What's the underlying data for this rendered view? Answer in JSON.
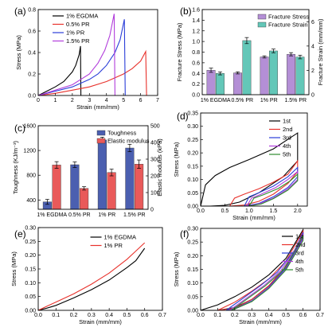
{
  "chart_data": [
    {
      "panel": "(a)",
      "type": "line",
      "xlabel": "Strain (mm/mm)",
      "ylabel": "Stress (MPa)",
      "xlim": [
        0,
        7
      ],
      "ylim": [
        0,
        0.8
      ],
      "xticks": [
        "0",
        "1",
        "2",
        "3",
        "4",
        "5",
        "6",
        "7"
      ],
      "yticks": [
        "0.0",
        "0.2",
        "0.4",
        "0.6",
        "0.8"
      ],
      "legend_position": "top-left",
      "series": [
        {
          "name": "1% EGDMA",
          "color": "#000000",
          "x": [
            0,
            0.5,
            1,
            1.5,
            2,
            2.2,
            2.4,
            2.48,
            2.5
          ],
          "y": [
            0,
            0.04,
            0.08,
            0.13,
            0.22,
            0.28,
            0.38,
            0.46,
            0.0
          ]
        },
        {
          "name": "0.5% PR",
          "color": "#e8312b",
          "x": [
            0,
            1,
            2,
            3,
            4,
            5,
            5.5,
            6,
            6.3,
            6.35
          ],
          "y": [
            0,
            0.02,
            0.05,
            0.08,
            0.13,
            0.2,
            0.25,
            0.32,
            0.41,
            0.0
          ]
        },
        {
          "name": "1% PR",
          "color": "#2a3dd8",
          "x": [
            0,
            1,
            2,
            3,
            3.5,
            4,
            4.5,
            4.8,
            5.05,
            5.1
          ],
          "y": [
            0,
            0.04,
            0.08,
            0.15,
            0.2,
            0.28,
            0.4,
            0.52,
            0.71,
            0.0
          ]
        },
        {
          "name": "1.5% PR",
          "color": "#b13ddb",
          "x": [
            0,
            1,
            2,
            3,
            3.5,
            3.9,
            4.2,
            4.45,
            4.5
          ],
          "y": [
            0,
            0.05,
            0.1,
            0.2,
            0.3,
            0.42,
            0.56,
            0.76,
            0.0
          ]
        }
      ]
    },
    {
      "panel": "(b)",
      "type": "bar",
      "categories": [
        "1% EGDMA",
        "0.5% PR",
        "1% PR",
        "1.5% PR"
      ],
      "ylabel": "Fracture Stress (MPa)",
      "ylim": [
        0,
        1.6
      ],
      "yticks": [
        "0.0",
        "0.2",
        "0.4",
        "0.6",
        "0.8",
        "1.0",
        "1.2",
        "1.4",
        "1.6"
      ],
      "y2label": "Fracture Strain (mm/mm)",
      "y2lim": [
        0,
        7
      ],
      "y2ticks": [
        "0",
        "2",
        "4",
        "6"
      ],
      "legend_position": "top-right",
      "series": [
        {
          "name": "Fracture Stress",
          "axis": "left",
          "color": "#b48fd6",
          "values": [
            0.46,
            0.41,
            0.71,
            0.76
          ],
          "errors": [
            0.04,
            0.02,
            0.02,
            0.03
          ]
        },
        {
          "name": "Fracture Strain",
          "axis": "right",
          "color": "#63c7b8",
          "values": [
            1.75,
            4.45,
            3.6,
            3.1
          ],
          "errors": [
            0.12,
            0.25,
            0.15,
            0.15
          ]
        }
      ]
    },
    {
      "panel": "(c)",
      "type": "bar",
      "categories": [
        "1% EGDMA",
        "0.5% PR",
        "1% PR",
        "1.5% PR"
      ],
      "ylabel": "Toughness (KJ/m⁻³)",
      "ylim": [
        250,
        1600
      ],
      "yticks": [
        "400",
        "800",
        "1200",
        "1600"
      ],
      "y2label": "Elastic modulus (kPa)",
      "y2lim": [
        0,
        500
      ],
      "y2ticks": [
        "0",
        "100",
        "200",
        "300",
        "400",
        "500"
      ],
      "legend_position": "top-right",
      "series": [
        {
          "name": "Toughness",
          "axis": "left",
          "color": "#4b5fb0",
          "values": [
            370,
            970,
            1370,
            1240
          ],
          "errors": [
            40,
            45,
            45,
            60
          ]
        },
        {
          "name": "Elastic modulus",
          "axis": "right",
          "color": "#e95a5a",
          "values": [
            265,
            125,
            220,
            270
          ],
          "errors": [
            20,
            10,
            20,
            25
          ]
        }
      ]
    },
    {
      "panel": "(d)",
      "type": "line",
      "xlabel": "Strain (mm/mm)",
      "ylabel": "Stress (MPa)",
      "xlim": [
        0,
        2.2
      ],
      "ylim": [
        0,
        0.35
      ],
      "xticks": [
        "0.0",
        "0.5",
        "1.0",
        "1.5",
        "2.0"
      ],
      "yticks": [
        "0.00",
        "0.05",
        "0.10",
        "0.15",
        "0.20",
        "0.25",
        "0.30",
        "0.35"
      ],
      "legend_position": "top-right",
      "series": [
        {
          "name": "1st",
          "color": "#000000",
          "x": [
            0,
            0.1,
            0.3,
            0.6,
            1.0,
            1.5,
            2.0,
            2.0,
            1.7,
            1.2,
            0.8,
            0.5,
            0.2,
            0.0
          ],
          "y": [
            0,
            0.08,
            0.115,
            0.145,
            0.175,
            0.215,
            0.275,
            0.17,
            0.11,
            0.05,
            0.015,
            0.003,
            0,
            0
          ]
        },
        {
          "name": "2nd",
          "color": "#e8312b",
          "x": [
            0.6,
            0.7,
            0.9,
            1.2,
            1.5,
            1.8,
            2.0,
            2.0,
            1.8,
            1.5,
            1.2,
            0.9,
            0.6
          ],
          "y": [
            0,
            0.03,
            0.045,
            0.065,
            0.09,
            0.12,
            0.17,
            0.13,
            0.085,
            0.045,
            0.018,
            0.004,
            0
          ]
        },
        {
          "name": "3rd",
          "color": "#2a3dd8",
          "x": [
            0.9,
            1.0,
            1.2,
            1.5,
            1.8,
            2.0,
            2.0,
            1.8,
            1.5,
            1.2,
            0.9
          ],
          "y": [
            0,
            0.035,
            0.05,
            0.075,
            0.11,
            0.145,
            0.11,
            0.07,
            0.035,
            0.01,
            0
          ]
        },
        {
          "name": "4th",
          "color": "#b13ddb",
          "x": [
            0.95,
            1.05,
            1.25,
            1.55,
            1.8,
            2.0,
            2.0,
            1.8,
            1.5,
            1.2,
            0.95
          ],
          "y": [
            0,
            0.03,
            0.045,
            0.07,
            0.1,
            0.13,
            0.1,
            0.065,
            0.03,
            0.008,
            0
          ]
        },
        {
          "name": "5th",
          "color": "#2e8b2e",
          "x": [
            1.0,
            1.1,
            1.3,
            1.6,
            1.85,
            2.0,
            2.0,
            1.8,
            1.5,
            1.25,
            1.0
          ],
          "y": [
            0,
            0.03,
            0.043,
            0.066,
            0.095,
            0.12,
            0.095,
            0.06,
            0.028,
            0.008,
            0
          ]
        }
      ]
    },
    {
      "panel": "(e)",
      "type": "line",
      "xlabel": "Strain (mm/mm)",
      "ylabel": "Stress (MPa)",
      "xlim": [
        0,
        0.7
      ],
      "ylim": [
        0,
        0.3
      ],
      "xticks": [
        "0.0",
        "0.1",
        "0.2",
        "0.3",
        "0.4",
        "0.5",
        "0.6",
        "0.7"
      ],
      "yticks": [
        "0.00",
        "0.05",
        "0.10",
        "0.15",
        "0.20",
        "0.25",
        "0.30"
      ],
      "legend_position": "top-center",
      "series": [
        {
          "name": "1% EGDMA",
          "color": "#000000",
          "x": [
            0,
            0.05,
            0.1,
            0.2,
            0.3,
            0.4,
            0.5,
            0.55,
            0.6
          ],
          "y": [
            0,
            0.008,
            0.018,
            0.045,
            0.075,
            0.11,
            0.155,
            0.18,
            0.225
          ]
        },
        {
          "name": "1% PR",
          "color": "#e8312b",
          "x": [
            0,
            0.05,
            0.1,
            0.2,
            0.3,
            0.4,
            0.5,
            0.55,
            0.6
          ],
          "y": [
            0,
            0.015,
            0.03,
            0.06,
            0.095,
            0.135,
            0.185,
            0.215,
            0.245
          ]
        }
      ]
    },
    {
      "panel": "(f)",
      "type": "line",
      "xlabel": "Strain (mm/mm)",
      "ylabel": "Stress (MPa)",
      "xlim": [
        0,
        0.7
      ],
      "ylim": [
        0,
        0.3
      ],
      "xticks": [
        "0.0",
        "0.1",
        "0.2",
        "0.3",
        "0.4",
        "0.5",
        "0.6",
        "0.7"
      ],
      "yticks": [
        "0.00",
        "0.05",
        "0.10",
        "0.15",
        "0.20",
        "0.25",
        "0.30"
      ],
      "legend_position": "top-right",
      "series": [
        {
          "name": "1st",
          "color": "#000000",
          "x": [
            0,
            0.1,
            0.2,
            0.3,
            0.4,
            0.5,
            0.6,
            0.6,
            0.5,
            0.4,
            0.3,
            0.2,
            0.1,
            0.0
          ],
          "y": [
            0,
            0.02,
            0.05,
            0.085,
            0.13,
            0.19,
            0.295,
            0.27,
            0.16,
            0.09,
            0.04,
            0.01,
            0,
            0
          ]
        },
        {
          "name": "2nd",
          "color": "#e8312b",
          "x": [
            0.1,
            0.2,
            0.3,
            0.4,
            0.5,
            0.6,
            0.6,
            0.5,
            0.4,
            0.3,
            0.2,
            0.1
          ],
          "y": [
            0,
            0.03,
            0.07,
            0.115,
            0.18,
            0.29,
            0.27,
            0.16,
            0.09,
            0.04,
            0.008,
            0
          ]
        },
        {
          "name": "3rd",
          "color": "#2a3dd8",
          "x": [
            0.15,
            0.25,
            0.35,
            0.45,
            0.55,
            0.6,
            0.6,
            0.5,
            0.4,
            0.3,
            0.2,
            0.15
          ],
          "y": [
            0,
            0.045,
            0.09,
            0.14,
            0.22,
            0.285,
            0.265,
            0.155,
            0.085,
            0.035,
            0.006,
            0
          ]
        },
        {
          "name": "4th",
          "color": "#b13ddb",
          "x": [
            0.17,
            0.27,
            0.37,
            0.47,
            0.55,
            0.6,
            0.6,
            0.5,
            0.4,
            0.3,
            0.2,
            0.17
          ],
          "y": [
            0,
            0.045,
            0.09,
            0.145,
            0.22,
            0.28,
            0.26,
            0.15,
            0.082,
            0.033,
            0.005,
            0
          ]
        },
        {
          "name": "5th",
          "color": "#2e8b2e",
          "x": [
            0.18,
            0.28,
            0.38,
            0.48,
            0.55,
            0.6,
            0.6,
            0.5,
            0.4,
            0.3,
            0.2,
            0.18
          ],
          "y": [
            0,
            0.045,
            0.09,
            0.145,
            0.215,
            0.275,
            0.255,
            0.148,
            0.08,
            0.032,
            0.005,
            0
          ]
        }
      ]
    }
  ]
}
